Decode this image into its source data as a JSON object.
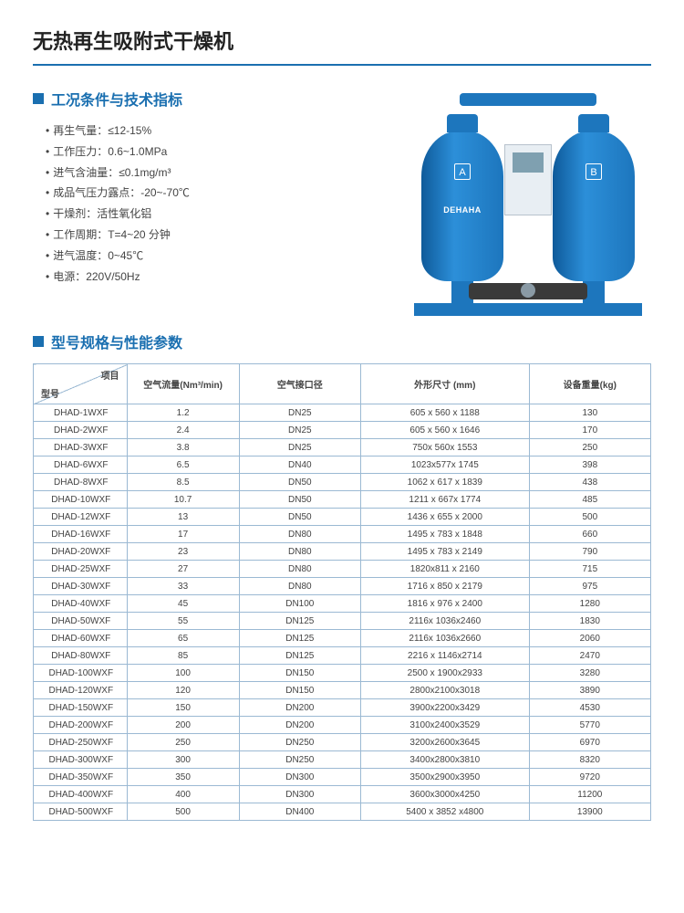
{
  "colors": {
    "accent": "#1a6fb0",
    "tank": "#1d76bd",
    "border": "#9bb9d3"
  },
  "page_title": "无热再生吸附式干燥机",
  "section_conditions_title": "工况条件与技术指标",
  "section_table_title": "型号规格与性能参数",
  "specs": [
    "再生气量：≤12-15%",
    "工作压力：0.6~1.0MPa",
    "进气含油量：≤0.1mg/m³",
    "成品气压力露点：-20~-70℃",
    "干燥剂：活性氧化铝",
    "工作周期：T=4~20 分钟",
    "进气温度：0~45℃",
    "电源：220V/50Hz"
  ],
  "machine": {
    "tag_a": "A",
    "tag_b": "B",
    "brand": "DEHAHA"
  },
  "table": {
    "diag_top": "项目",
    "diag_bottom": "型号",
    "columns": [
      "空气流量(Nm³/min)",
      "空气接口径",
      "外形尺寸 (mm)",
      "设备重量(kg)"
    ],
    "rows": [
      [
        "DHAD-1WXF",
        "1.2",
        "DN25",
        "605 x 560 x 1188",
        "130"
      ],
      [
        "DHAD-2WXF",
        "2.4",
        "DN25",
        "605 x 560 x 1646",
        "170"
      ],
      [
        "DHAD-3WXF",
        "3.8",
        "DN25",
        "750x 560x 1553",
        "250"
      ],
      [
        "DHAD-6WXF",
        "6.5",
        "DN40",
        "1023x577x 1745",
        "398"
      ],
      [
        "DHAD-8WXF",
        "8.5",
        "DN50",
        "1062 x 617 x 1839",
        "438"
      ],
      [
        "DHAD-10WXF",
        "10.7",
        "DN50",
        "1211 x 667x 1774",
        "485"
      ],
      [
        "DHAD-12WXF",
        "13",
        "DN50",
        "1436 x 655 x 2000",
        "500"
      ],
      [
        "DHAD-16WXF",
        "17",
        "DN80",
        "1495 x 783 x 1848",
        "660"
      ],
      [
        "DHAD-20WXF",
        "23",
        "DN80",
        "1495 x 783 x 2149",
        "790"
      ],
      [
        "DHAD-25WXF",
        "27",
        "DN80",
        "1820x811 x 2160",
        "715"
      ],
      [
        "DHAD-30WXF",
        "33",
        "DN80",
        "1716 x 850 x 2179",
        "975"
      ],
      [
        "DHAD-40WXF",
        "45",
        "DN100",
        "1816 x 976 x 2400",
        "1280"
      ],
      [
        "DHAD-50WXF",
        "55",
        "DN125",
        "2116x 1036x2460",
        "1830"
      ],
      [
        "DHAD-60WXF",
        "65",
        "DN125",
        "2116x 1036x2660",
        "2060"
      ],
      [
        "DHAD-80WXF",
        "85",
        "DN125",
        "2216 x 1146x2714",
        "2470"
      ],
      [
        "DHAD-100WXF",
        "100",
        "DN150",
        "2500 x 1900x2933",
        "3280"
      ],
      [
        "DHAD-120WXF",
        "120",
        "DN150",
        "2800x2100x3018",
        "3890"
      ],
      [
        "DHAD-150WXF",
        "150",
        "DN200",
        "3900x2200x3429",
        "4530"
      ],
      [
        "DHAD-200WXF",
        "200",
        "DN200",
        "3100x2400x3529",
        "5770"
      ],
      [
        "DHAD-250WXF",
        "250",
        "DN250",
        "3200x2600x3645",
        "6970"
      ],
      [
        "DHAD-300WXF",
        "300",
        "DN250",
        "3400x2800x3810",
        "8320"
      ],
      [
        "DHAD-350WXF",
        "350",
        "DN300",
        "3500x2900x3950",
        "9720"
      ],
      [
        "DHAD-400WXF",
        "400",
        "DN300",
        "3600x3000x4250",
        "11200"
      ],
      [
        "DHAD-500WXF",
        "500",
        "DN400",
        "5400 x 3852 x4800",
        "13900"
      ]
    ]
  }
}
